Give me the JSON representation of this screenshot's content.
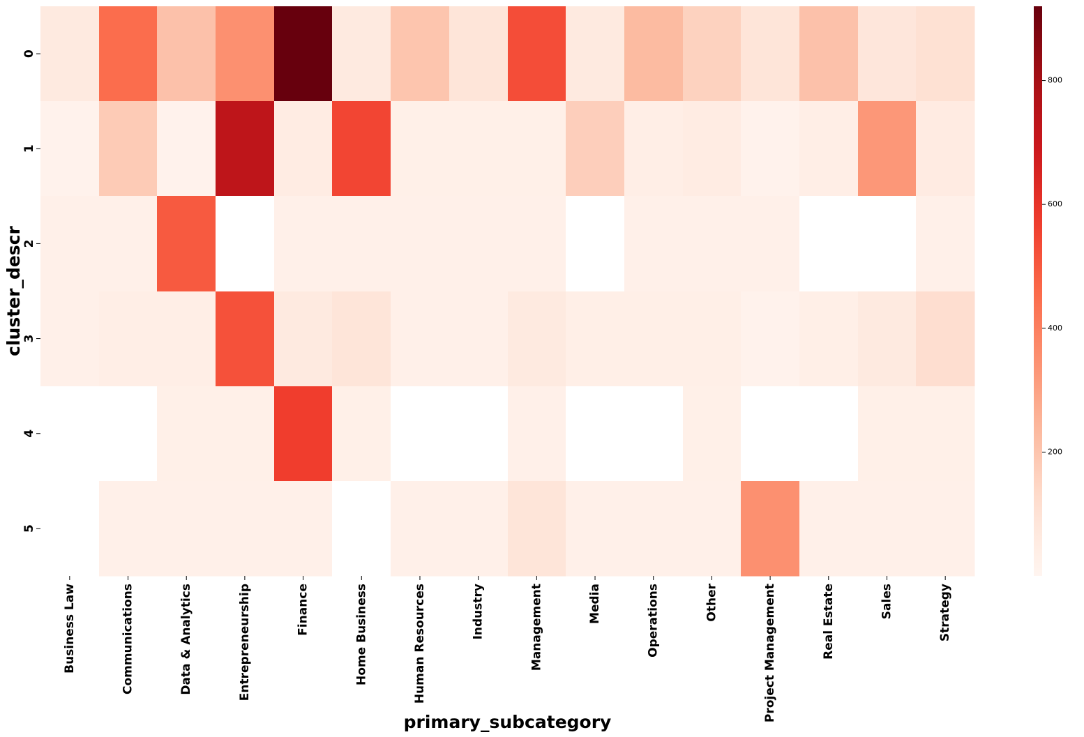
{
  "chart_data": {
    "type": "heatmap",
    "title": "",
    "xlabel": "primary_subcategory",
    "ylabel": "cluster_descr",
    "x_categories": [
      "Business Law",
      "Communications",
      "Data & Analytics",
      "Entrepreneurship",
      "Finance",
      "Home Business",
      "Human Resources",
      "Industry",
      "Management",
      "Media",
      "Operations",
      "Other",
      "Project Management",
      "Real Estate",
      "Sales",
      "Strategy"
    ],
    "y_categories": [
      "0",
      "1",
      "2",
      "3",
      "4",
      "5"
    ],
    "values": [
      [
        60,
        450,
        210,
        350,
        920,
        60,
        200,
        90,
        530,
        60,
        230,
        160,
        90,
        210,
        80,
        110
      ],
      [
        15,
        180,
        15,
        730,
        50,
        550,
        30,
        30,
        30,
        170,
        40,
        50,
        15,
        40,
        330,
        55
      ],
      [
        25,
        25,
        500,
        null,
        25,
        25,
        25,
        25,
        25,
        null,
        25,
        25,
        25,
        null,
        null,
        25
      ],
      [
        25,
        40,
        40,
        520,
        60,
        90,
        25,
        25,
        60,
        35,
        35,
        35,
        15,
        35,
        60,
        120
      ],
      [
        null,
        null,
        30,
        30,
        570,
        30,
        null,
        null,
        25,
        null,
        null,
        30,
        null,
        null,
        30,
        30
      ],
      [
        null,
        25,
        25,
        25,
        25,
        null,
        25,
        25,
        90,
        25,
        25,
        25,
        350,
        25,
        25,
        25
      ]
    ],
    "colormap": "Reds",
    "vmin": 0,
    "vmax": 920,
    "colorbar_ticks": [
      200,
      400,
      600,
      800
    ],
    "colorbar_tick_labels": [
      "200",
      "400",
      "600",
      "800"
    ],
    "colors": {
      "min": "#fff5f0",
      "max": "#67000d",
      "missing": "#ffffff"
    }
  }
}
